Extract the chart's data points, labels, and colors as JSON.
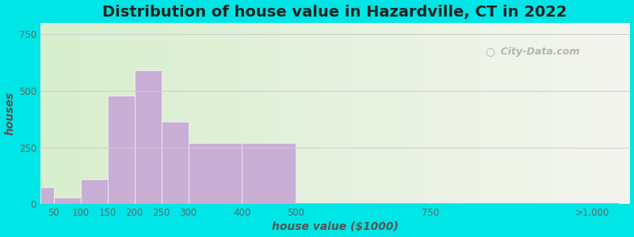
{
  "title": "Distribution of house value in Hazardville, CT in 2022",
  "xlabel": "house value ($1000)",
  "ylabel": "houses",
  "bins_left": [
    25,
    50,
    100,
    150,
    200,
    250,
    300,
    400,
    500,
    750,
    1000
  ],
  "bins_width": [
    25,
    50,
    50,
    50,
    50,
    50,
    100,
    100,
    250,
    250,
    100
  ],
  "heights": [
    75,
    30,
    110,
    480,
    590,
    365,
    270,
    270,
    8,
    8,
    8
  ],
  "xtick_pos": [
    50,
    100,
    150,
    200,
    250,
    300,
    400,
    500,
    750,
    1050
  ],
  "xtick_labels": [
    "50",
    "100",
    "150",
    "200",
    "250",
    "300",
    "400",
    "500",
    "750",
    ">1,000"
  ],
  "ytick_vals": [
    0,
    250,
    500,
    750
  ],
  "bar_color": "#c9aed6",
  "bg_outer": "#00e5e5",
  "bg_plot": "#eef8e8",
  "ylim": [
    0,
    800
  ],
  "xlim_left": 25,
  "xlim_right": 1120,
  "title_fontsize": 14,
  "axis_label_fontsize": 10,
  "watermark": "City-Data.com"
}
